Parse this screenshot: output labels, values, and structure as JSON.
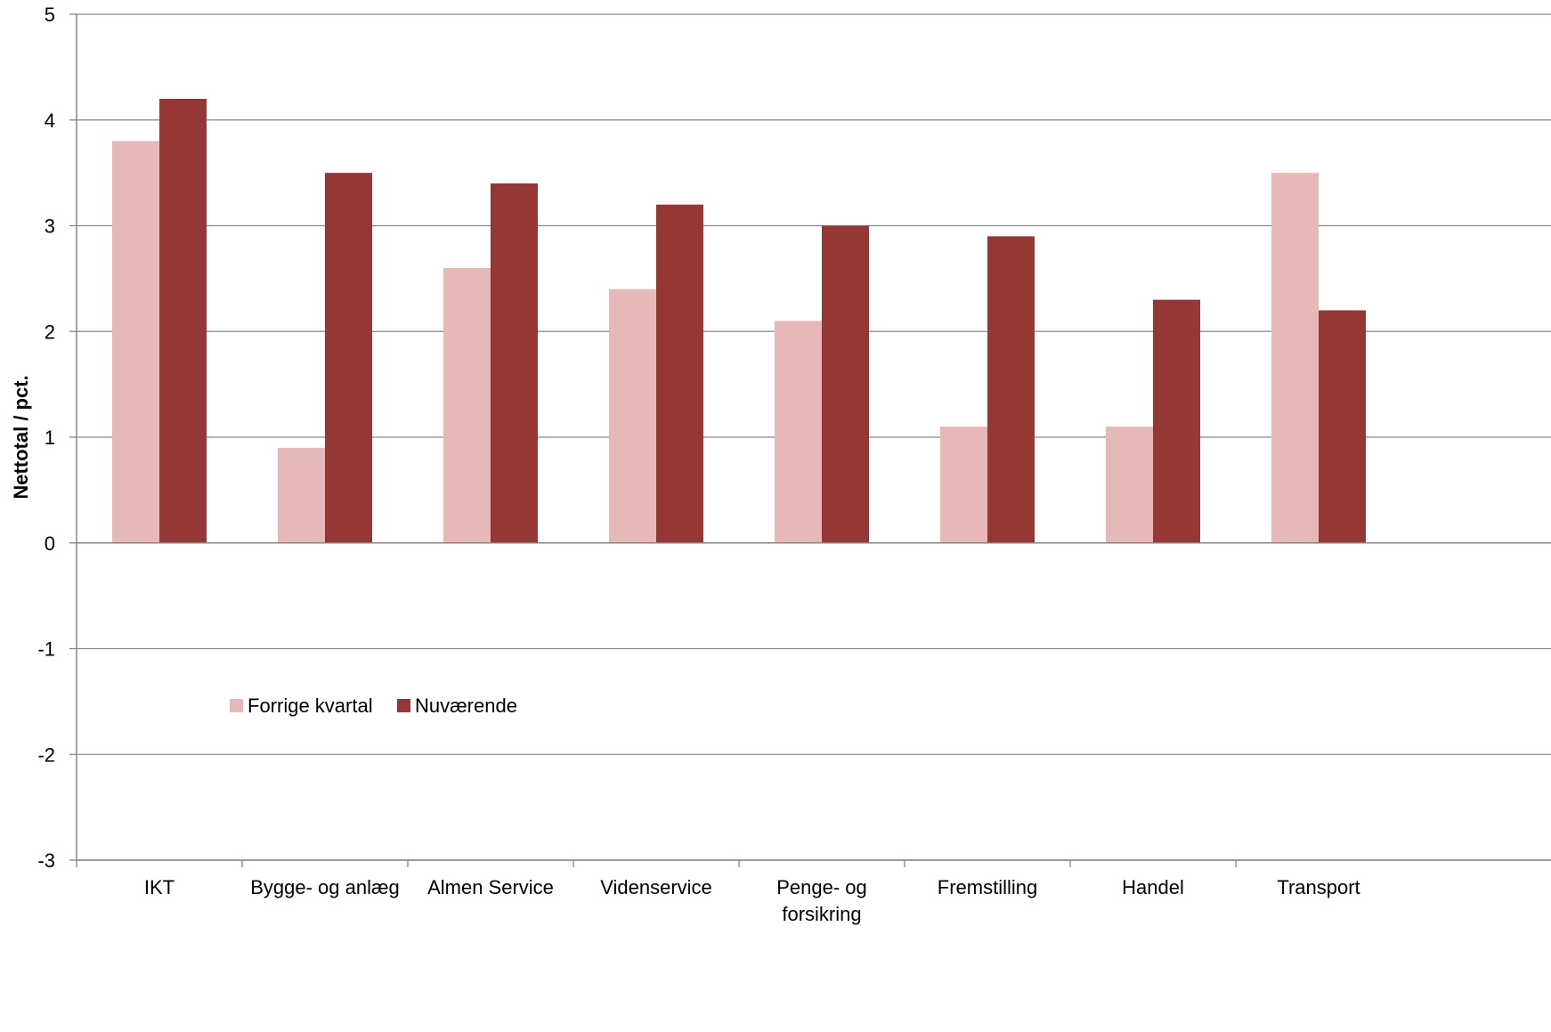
{
  "chart_data": {
    "type": "bar",
    "title": "",
    "xlabel": "",
    "ylabel": "Nettotal / pct.",
    "ylim": [
      -3,
      5
    ],
    "yticks": [
      5,
      4,
      3,
      2,
      1,
      0,
      -1,
      -2,
      -3
    ],
    "grid": true,
    "legend_position": "lower-left inside plot",
    "categories": [
      [
        "IKT"
      ],
      [
        "Bygge- og anlæg"
      ],
      [
        "Almen Service"
      ],
      [
        "Videnservice"
      ],
      [
        "Penge- og",
        "forsikring"
      ],
      [
        "Fremstilling"
      ],
      [
        "Handel"
      ],
      [
        "Transport"
      ]
    ],
    "series": [
      {
        "name": "Forrige kvartal",
        "color": "#e6b8b7",
        "values": [
          3.8,
          0.9,
          2.6,
          2.4,
          2.1,
          1.1,
          1.1,
          3.5
        ]
      },
      {
        "name": "Nuværende",
        "color": "#953735",
        "values": [
          4.2,
          3.5,
          3.4,
          3.2,
          3.0,
          2.9,
          2.3,
          2.2
        ]
      }
    ]
  },
  "colors": {
    "grid": "#868686",
    "axis": "#868686"
  }
}
